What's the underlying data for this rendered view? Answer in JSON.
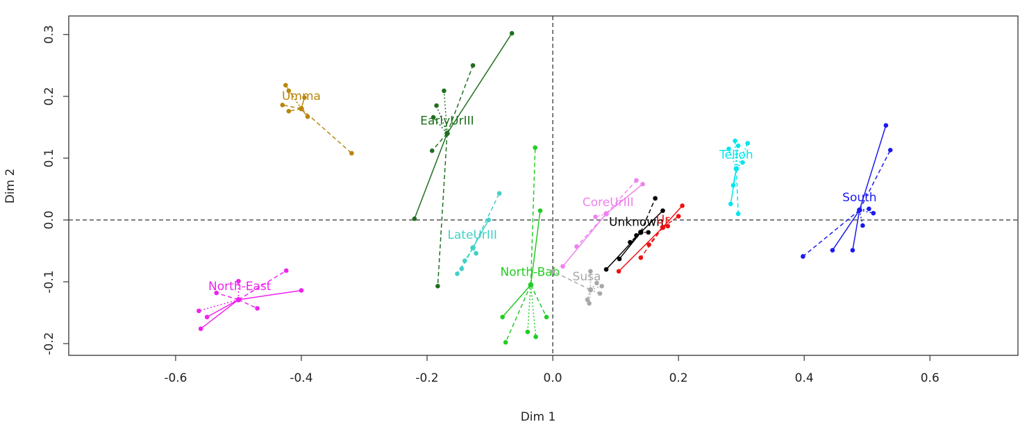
{
  "chart_data": {
    "type": "scatter",
    "title": "",
    "xlabel": "Dim 1",
    "ylabel": "Dim 2",
    "xlim": [
      -0.77,
      0.74
    ],
    "ylim": [
      -0.219,
      0.33
    ],
    "xticks": [
      -0.6,
      -0.4,
      -0.2,
      0.0,
      0.2,
      0.4,
      0.6
    ],
    "xtick_labels": [
      "-0.6",
      "-0.4",
      "-0.2",
      "0.0",
      "0.2",
      "0.4",
      "0.6"
    ],
    "yticks": [
      -0.2,
      -0.1,
      0.0,
      0.1,
      0.2,
      0.3
    ],
    "ytick_labels": [
      "-0.2",
      "-0.1",
      "0.0",
      "0.1",
      "0.2",
      "0.3"
    ],
    "reference_lines": {
      "x": 0.0,
      "y": 0.0,
      "style": "dashed"
    },
    "grid": false,
    "series": [
      {
        "name": "Umma",
        "color": "#b8860b",
        "center": [
          -0.4,
          0.18
        ],
        "label_at": [
          -0.4,
          0.2
        ],
        "points": [
          {
            "x": -0.32,
            "y": 0.108,
            "style": "dashed"
          },
          {
            "x": -0.425,
            "y": 0.218,
            "style": "dotted"
          },
          {
            "x": -0.42,
            "y": 0.209,
            "style": "dotted"
          },
          {
            "x": -0.43,
            "y": 0.186,
            "style": "dashed"
          },
          {
            "x": -0.42,
            "y": 0.176,
            "style": "dashed"
          },
          {
            "x": -0.39,
            "y": 0.167,
            "style": "solid"
          },
          {
            "x": -0.395,
            "y": 0.198,
            "style": "solid"
          }
        ]
      },
      {
        "name": "EarlyUrIII",
        "color": "#1f6f1f",
        "center": [
          -0.168,
          0.14
        ],
        "label_at": [
          -0.168,
          0.16
        ],
        "points": [
          {
            "x": -0.065,
            "y": 0.302,
            "style": "solid"
          },
          {
            "x": -0.127,
            "y": 0.25,
            "style": "dashed"
          },
          {
            "x": -0.173,
            "y": 0.209,
            "style": "dotted"
          },
          {
            "x": -0.185,
            "y": 0.185,
            "style": "dotted"
          },
          {
            "x": -0.19,
            "y": 0.166,
            "style": "dotted"
          },
          {
            "x": -0.192,
            "y": 0.112,
            "style": "dashed"
          },
          {
            "x": -0.22,
            "y": 0.002,
            "style": "solid"
          },
          {
            "x": -0.183,
            "y": -0.107,
            "style": "dashed"
          }
        ]
      },
      {
        "name": "Telloh",
        "color": "#00e5ee",
        "center": [
          0.292,
          0.083
        ],
        "label_at": [
          0.292,
          0.105
        ],
        "points": [
          {
            "x": 0.29,
            "y": 0.128,
            "style": "dotted"
          },
          {
            "x": 0.295,
            "y": 0.12,
            "style": "dotted"
          },
          {
            "x": 0.28,
            "y": 0.115,
            "style": "dotted"
          },
          {
            "x": 0.31,
            "y": 0.124,
            "style": "dotted"
          },
          {
            "x": 0.302,
            "y": 0.093,
            "style": "dotted"
          },
          {
            "x": 0.287,
            "y": 0.056,
            "style": "solid"
          },
          {
            "x": 0.283,
            "y": 0.026,
            "style": "solid"
          },
          {
            "x": 0.295,
            "y": 0.01,
            "style": "dashed"
          }
        ]
      },
      {
        "name": "South",
        "color": "#1a1aee",
        "center": [
          0.488,
          0.016
        ],
        "label_at": [
          0.488,
          0.036
        ],
        "points": [
          {
            "x": 0.53,
            "y": 0.153,
            "style": "solid"
          },
          {
            "x": 0.537,
            "y": 0.113,
            "style": "dashed"
          },
          {
            "x": 0.503,
            "y": 0.018,
            "style": "dotted"
          },
          {
            "x": 0.51,
            "y": 0.011,
            "style": "dotted"
          },
          {
            "x": 0.493,
            "y": -0.009,
            "style": "dotted"
          },
          {
            "x": 0.398,
            "y": -0.059,
            "style": "dashed"
          },
          {
            "x": 0.445,
            "y": -0.049,
            "style": "solid"
          },
          {
            "x": 0.477,
            "y": -0.049,
            "style": "solid"
          }
        ]
      },
      {
        "name": "CoreUrIII",
        "color": "#ee82ee",
        "center": [
          0.085,
          0.01
        ],
        "label_at": [
          0.088,
          0.028
        ],
        "points": [
          {
            "x": 0.133,
            "y": 0.064,
            "style": "dashed"
          },
          {
            "x": 0.143,
            "y": 0.058,
            "style": "solid"
          },
          {
            "x": 0.068,
            "y": 0.005,
            "style": "dotted"
          },
          {
            "x": 0.038,
            "y": -0.043,
            "style": "dashed"
          },
          {
            "x": 0.016,
            "y": -0.075,
            "style": "solid"
          }
        ]
      },
      {
        "name": "Unknown",
        "color": "#000000",
        "center": [
          0.14,
          -0.02
        ],
        "label_at": [
          0.133,
          -0.004
        ],
        "points": [
          {
            "x": 0.163,
            "y": 0.035,
            "style": "dashed"
          },
          {
            "x": 0.175,
            "y": 0.015,
            "style": "solid"
          },
          {
            "x": 0.152,
            "y": -0.02,
            "style": "dotted"
          },
          {
            "x": 0.133,
            "y": -0.025,
            "style": "dotted"
          },
          {
            "x": 0.123,
            "y": -0.036,
            "style": "dashed"
          },
          {
            "x": 0.106,
            "y": -0.063,
            "style": "solid"
          },
          {
            "x": 0.085,
            "y": -0.08,
            "style": "solid"
          }
        ]
      },
      {
        "name": "Ur",
        "color": "#ee1111",
        "center": [
          0.175,
          -0.012
        ],
        "label_at": [
          0.175,
          0.0
        ],
        "points": [
          {
            "x": 0.206,
            "y": 0.023,
            "style": "solid"
          },
          {
            "x": 0.2,
            "y": 0.006,
            "style": "dashed"
          },
          {
            "x": 0.183,
            "y": -0.01,
            "style": "dotted"
          },
          {
            "x": 0.153,
            "y": -0.04,
            "style": "dashed"
          },
          {
            "x": 0.14,
            "y": -0.061,
            "style": "dashed"
          },
          {
            "x": 0.105,
            "y": -0.083,
            "style": "solid"
          }
        ]
      },
      {
        "name": "LateUrIII",
        "color": "#40d0c8",
        "center": [
          -0.127,
          -0.045
        ],
        "label_at": [
          -0.128,
          -0.025
        ],
        "points": [
          {
            "x": -0.085,
            "y": 0.043,
            "style": "dashed"
          },
          {
            "x": -0.102,
            "y": 0.0,
            "style": "solid"
          },
          {
            "x": -0.122,
            "y": -0.054,
            "style": "dotted"
          },
          {
            "x": -0.14,
            "y": -0.066,
            "style": "dotted"
          },
          {
            "x": -0.145,
            "y": -0.079,
            "style": "dashed"
          },
          {
            "x": -0.152,
            "y": -0.087,
            "style": "dashed"
          }
        ]
      },
      {
        "name": "North-Bab",
        "color": "#22cc22",
        "center": [
          -0.035,
          -0.105
        ],
        "label_at": [
          -0.036,
          -0.085
        ],
        "points": [
          {
            "x": -0.028,
            "y": 0.117,
            "style": "dashed"
          },
          {
            "x": -0.02,
            "y": 0.015,
            "style": "solid"
          },
          {
            "x": -0.08,
            "y": -0.157,
            "style": "solid"
          },
          {
            "x": -0.01,
            "y": -0.157,
            "style": "dashed"
          },
          {
            "x": -0.075,
            "y": -0.198,
            "style": "dashed"
          },
          {
            "x": -0.04,
            "y": -0.181,
            "style": "dotted"
          },
          {
            "x": -0.027,
            "y": -0.189,
            "style": "dotted"
          }
        ]
      },
      {
        "name": "Susa",
        "color": "#a8a8a8",
        "center": [
          0.06,
          -0.113
        ],
        "label_at": [
          0.054,
          -0.092
        ],
        "points": [
          {
            "x": 0.0,
            "y": -0.083,
            "style": "dashed"
          },
          {
            "x": 0.06,
            "y": -0.083,
            "style": "dotted"
          },
          {
            "x": 0.07,
            "y": -0.102,
            "style": "dotted"
          },
          {
            "x": 0.078,
            "y": -0.107,
            "style": "dotted"
          },
          {
            "x": 0.075,
            "y": -0.119,
            "style": "dotted"
          },
          {
            "x": 0.055,
            "y": -0.129,
            "style": "dotted"
          },
          {
            "x": 0.058,
            "y": -0.135,
            "style": "dotted"
          }
        ]
      },
      {
        "name": "North-East",
        "color": "#ee22ee",
        "center": [
          -0.5,
          -0.129
        ],
        "label_at": [
          -0.498,
          -0.108
        ],
        "points": [
          {
            "x": -0.424,
            "y": -0.082,
            "style": "dashed"
          },
          {
            "x": -0.4,
            "y": -0.114,
            "style": "solid"
          },
          {
            "x": -0.5,
            "y": -0.099,
            "style": "dotted"
          },
          {
            "x": -0.535,
            "y": -0.118,
            "style": "dashed"
          },
          {
            "x": -0.47,
            "y": -0.143,
            "style": "dashed"
          },
          {
            "x": -0.563,
            "y": -0.147,
            "style": "dotted"
          },
          {
            "x": -0.55,
            "y": -0.157,
            "style": "solid"
          },
          {
            "x": -0.56,
            "y": -0.176,
            "style": "solid"
          }
        ]
      }
    ]
  }
}
